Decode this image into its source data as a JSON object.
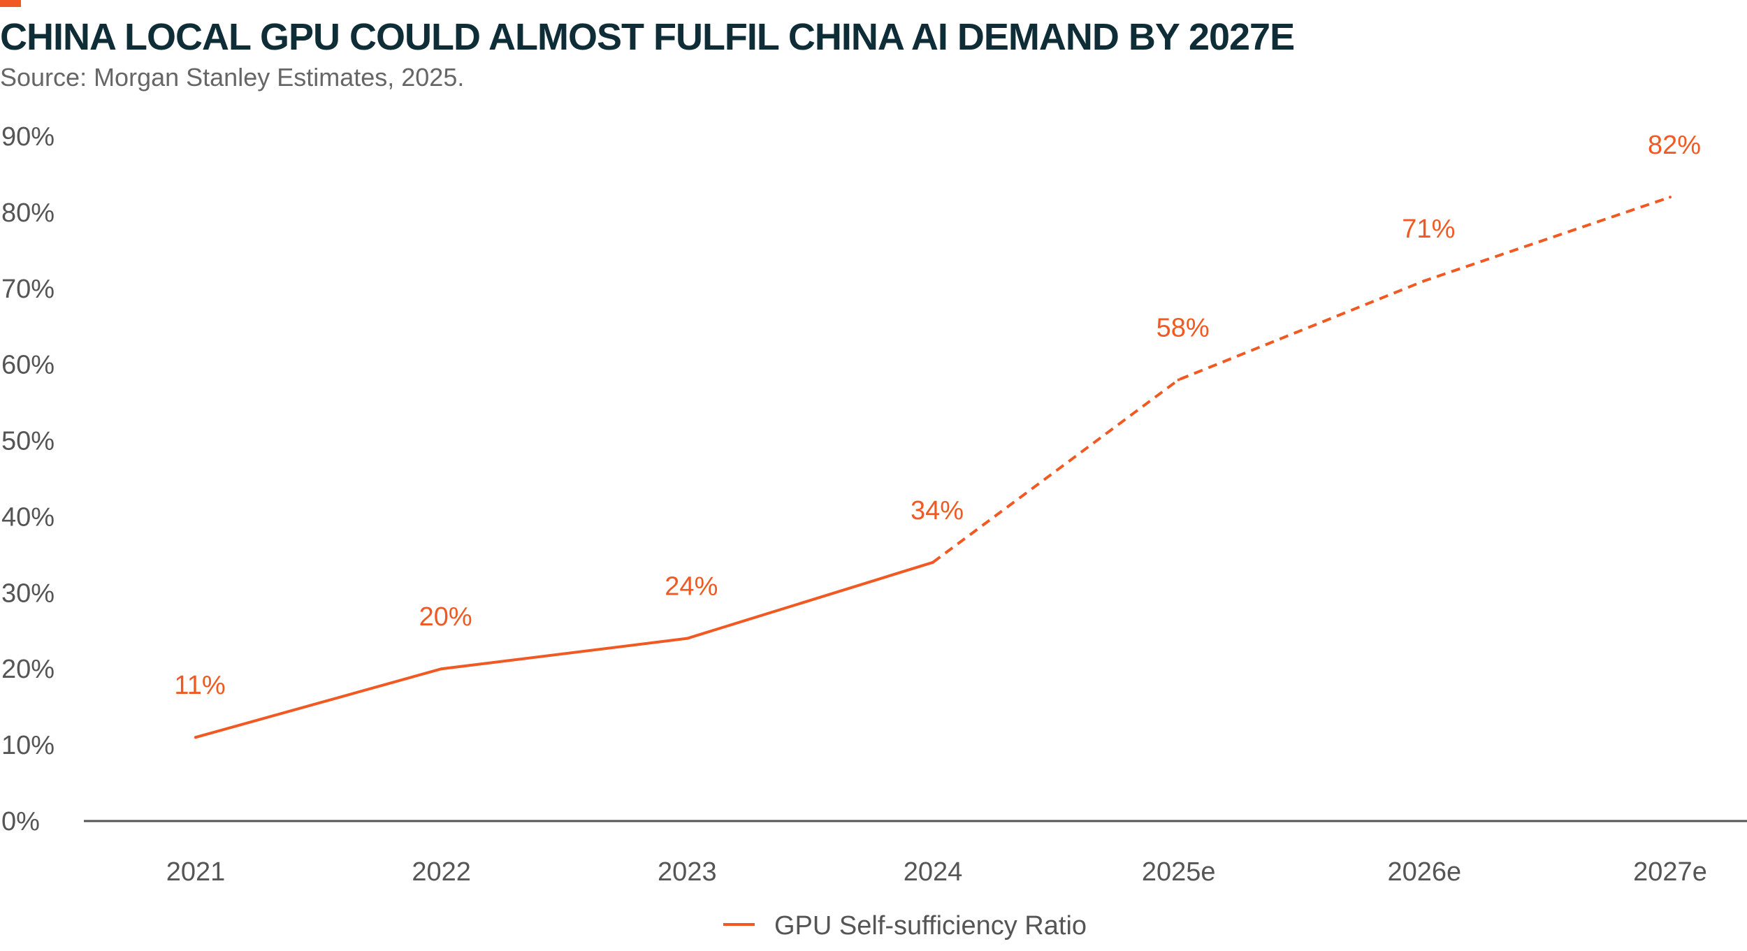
{
  "header": {
    "title": "CHINA LOCAL GPU COULD ALMOST FULFIL CHINA AI DEMAND BY 2027E",
    "subtitle": "Source: Morgan Stanley Estimates, 2025."
  },
  "colors": {
    "accent": "#F05A22",
    "title": "#0F2D37",
    "axis": "#555555",
    "tick_text": "#555555"
  },
  "chart_data": {
    "type": "line",
    "title": "CHINA LOCAL GPU COULD ALMOST FULFIL CHINA AI DEMAND BY 2027E",
    "subtitle": "Source: Morgan Stanley Estimates, 2025.",
    "xlabel": "",
    "ylabel": "",
    "categories": [
      "2021",
      "2022",
      "2023",
      "2024",
      "2025e",
      "2026e",
      "2027e"
    ],
    "y_ticks": [
      "0%",
      "10%",
      "20%",
      "30%",
      "40%",
      "50%",
      "60%",
      "70%",
      "80%",
      "90%"
    ],
    "ylim": [
      0,
      90
    ],
    "grid": false,
    "legend_position": "bottom",
    "series": [
      {
        "name": "GPU Self-sufficiency Ratio",
        "color": "#F05A22",
        "values": [
          11,
          20,
          24,
          34,
          58,
          71,
          82
        ],
        "value_labels": [
          "11%",
          "20%",
          "24%",
          "34%",
          "58%",
          "71%",
          "82%"
        ],
        "solid_segment": [
          "2021",
          "2024"
        ],
        "dashed_segment": [
          "2024",
          "2027e"
        ]
      }
    ]
  }
}
